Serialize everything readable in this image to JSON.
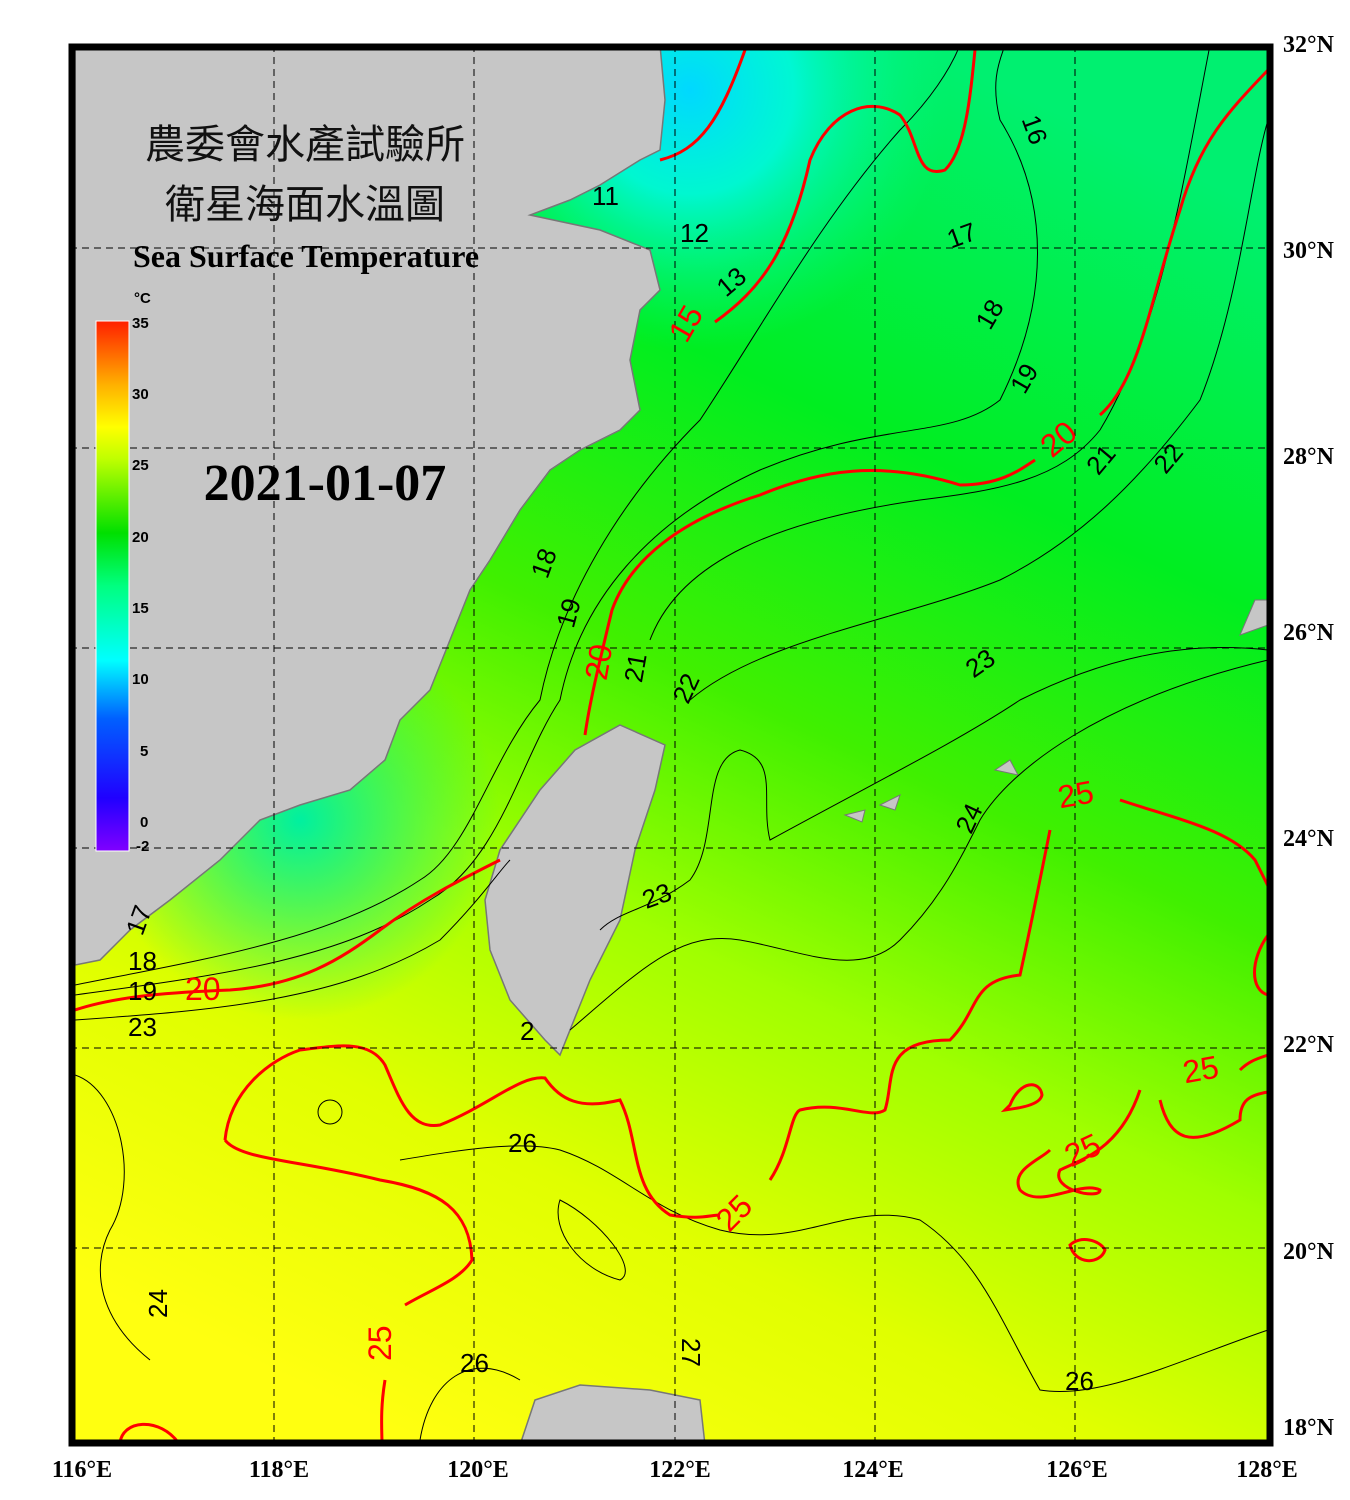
{
  "title_zh_line1": "農委會水產試驗所",
  "title_zh_line2": "衛星海面水溫圖",
  "title_en": "Sea Surface Temperature",
  "date": "2021-01-07",
  "colorbar": {
    "unit": "°C",
    "ticks": [
      "35",
      "30",
      "25",
      "20",
      "15",
      "10",
      "5",
      "0",
      "-2"
    ],
    "range": [
      -2,
      35
    ],
    "colors": [
      "#8000ff",
      "#0000ff",
      "#00a0ff",
      "#00ffff",
      "#00ff80",
      "#00e000",
      "#a0ff00",
      "#ffff00",
      "#ffa000",
      "#ff2000"
    ]
  },
  "axes": {
    "lat_labels": [
      "32°N",
      "30°N",
      "28°N",
      "26°N",
      "24°N",
      "22°N",
      "20°N",
      "18°N"
    ],
    "lon_labels": [
      "116°E",
      "118°E",
      "120°E",
      "122°E",
      "124°E",
      "126°E",
      "128°E"
    ],
    "lon_range": [
      116,
      128
    ],
    "lat_range": [
      18,
      32
    ]
  },
  "contour_labels_black": [
    "11",
    "12",
    "13",
    "16",
    "17",
    "18",
    "19",
    "21",
    "22",
    "18",
    "19",
    "21",
    "22",
    "23",
    "24",
    "23",
    "26",
    "24",
    "26",
    "27",
    "26",
    "17",
    "18",
    "19",
    "23",
    "2"
  ],
  "contour_labels_red": [
    "15",
    "20",
    "20",
    "20",
    "25",
    "25",
    "25",
    "25",
    "25",
    "25"
  ],
  "colors": {
    "land": "#c6c6c6",
    "isotherm_major": "#ff0000",
    "isotherm_minor": "#000000",
    "frame": "#000000"
  }
}
